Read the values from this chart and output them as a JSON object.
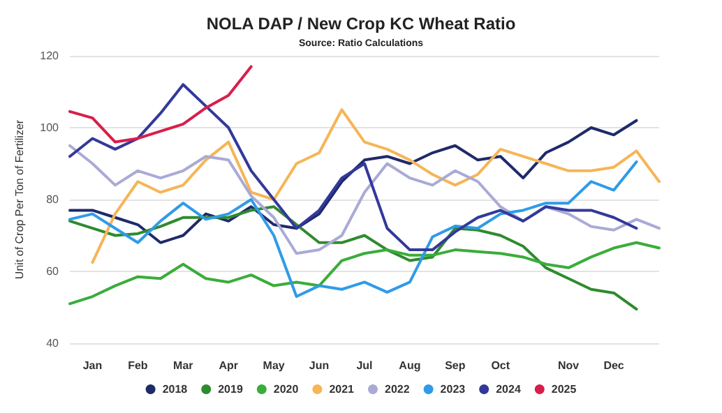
{
  "chart_data": {
    "type": "line",
    "title": "NOLA DAP / New Crop KC Wheat Ratio",
    "subtitle": "Source: Ratio Calculations",
    "ylabel": "Unit of Crop Per Ton of Fertilizer",
    "categories": [
      null,
      "Jan",
      null,
      "Feb",
      null,
      "Mar",
      null,
      "Apr",
      null,
      "May",
      null,
      "Jun",
      null,
      "Jul",
      null,
      "Aug",
      null,
      "Sep",
      null,
      "Oct",
      null,
      null,
      "Nov",
      null,
      "Dec",
      null,
      null
    ],
    "ylim": [
      40,
      120
    ],
    "yticks": [
      40,
      60,
      80,
      100,
      120
    ],
    "grid": "y",
    "legend": "bottom",
    "marker": "none",
    "line_style": "solid",
    "series": [
      {
        "name": "2018",
        "color": "#1f2a6b",
        "values": [
          77,
          77,
          75,
          73,
          68,
          70,
          76,
          74,
          78,
          73,
          72,
          76,
          85,
          91,
          92,
          90,
          93,
          95,
          91,
          92,
          86,
          93,
          96,
          100,
          98,
          102,
          null
        ]
      },
      {
        "name": "2019",
        "color": "#2e8b2e",
        "values": [
          74,
          72,
          70,
          70.5,
          72.5,
          75,
          75,
          75,
          77,
          78,
          73,
          68,
          68,
          70,
          66,
          63,
          64,
          72,
          71.5,
          70,
          67,
          61,
          58,
          55,
          54,
          49.5,
          null
        ]
      },
      {
        "name": "2020",
        "color": "#3aad3a",
        "values": [
          51,
          53,
          56,
          58.5,
          58,
          62,
          58,
          57,
          59,
          56,
          57,
          56,
          63,
          65,
          66,
          64.5,
          64.5,
          66,
          65.5,
          65,
          64,
          62,
          61,
          64,
          66.5,
          68,
          66.5
        ]
      },
      {
        "name": "2021",
        "color": "#f6b557",
        "values": [
          null,
          62.5,
          76,
          85,
          82,
          84,
          91,
          96,
          82,
          80,
          90,
          93,
          105,
          96,
          94,
          91,
          87,
          84,
          87,
          94,
          92,
          90,
          88,
          88,
          89,
          93.5,
          85
        ]
      },
      {
        "name": "2022",
        "color": "#a9aad6",
        "values": [
          95,
          90,
          84,
          88,
          86,
          88,
          92,
          91,
          81,
          75,
          65,
          66,
          70,
          82,
          90,
          86,
          84,
          88,
          85,
          78,
          74,
          78,
          76,
          72.5,
          71.5,
          74.5,
          72
        ]
      },
      {
        "name": "2023",
        "color": "#2f9be8",
        "values": [
          74.5,
          76,
          72,
          68,
          74,
          79,
          74.5,
          76,
          80,
          70,
          53,
          56,
          55,
          57,
          54.2,
          57,
          69.6,
          72.6,
          72,
          76,
          77,
          79,
          79,
          85,
          82.6,
          90.5,
          null
        ]
      },
      {
        "name": "2024",
        "color": "#33399a",
        "values": [
          92,
          97,
          94,
          97,
          104,
          112,
          106,
          100,
          88,
          80,
          72,
          77,
          86,
          90,
          72,
          66,
          66,
          71,
          75,
          77,
          74,
          78,
          77,
          77,
          75,
          72,
          null
        ]
      },
      {
        "name": "2025",
        "color": "#d81e4a",
        "values": [
          104.5,
          102.7,
          96,
          97,
          99,
          101,
          105.5,
          109,
          117,
          null,
          null,
          null,
          null,
          null,
          null,
          null,
          null,
          null,
          null,
          null,
          null,
          null,
          null,
          null,
          null,
          null,
          null
        ]
      }
    ]
  }
}
